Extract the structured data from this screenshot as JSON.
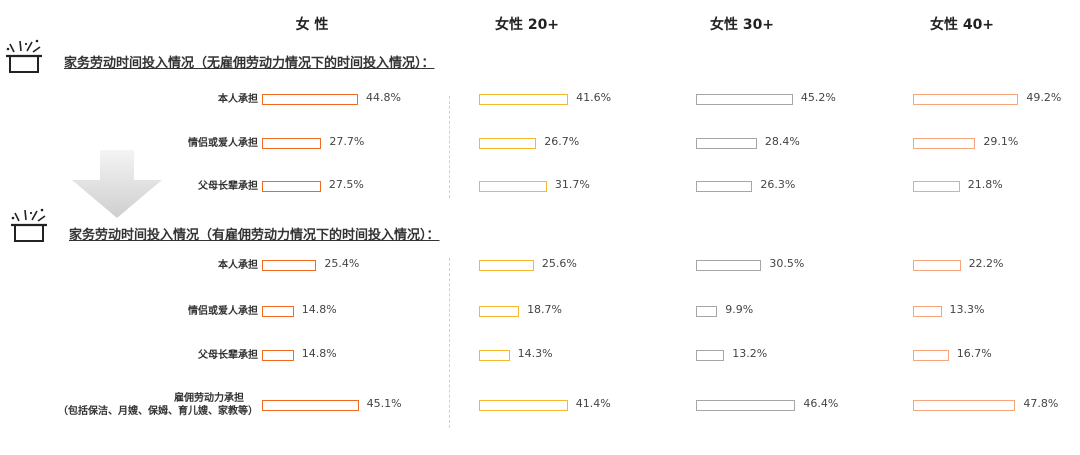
{
  "colors": {
    "女性": "#f26a21",
    "女性20+": "#f5b82e",
    "女性30+": "#a6a6a6",
    "女性40+": "#f7a57a"
  },
  "icons": [
    "pot-sparkle-icon",
    "down-arrow-icon"
  ],
  "chart_data": {
    "type": "bar",
    "columns": [
      "女 性",
      "女性 20+",
      "女性 30+",
      "女性 40+"
    ],
    "sections": [
      {
        "title": "家务劳动时间投入情况（无雇佣劳动力情况下的时间投入情况）：",
        "rows": [
          {
            "label": "本人承担",
            "values": [
              44.8,
              41.6,
              45.2,
              49.2
            ]
          },
          {
            "label": "情侣或爱人承担",
            "values": [
              27.7,
              26.7,
              28.4,
              29.1
            ]
          },
          {
            "label": "父母长辈承担",
            "values": [
              27.5,
              31.7,
              26.3,
              21.8
            ]
          }
        ]
      },
      {
        "title": "家务劳动时间投入情况（有雇佣劳动力情况下的时间投入情况）：",
        "rows": [
          {
            "label": "本人承担",
            "values": [
              25.4,
              25.6,
              30.5,
              22.2
            ]
          },
          {
            "label": "情侣或爱人承担",
            "values": [
              14.8,
              18.7,
              9.9,
              13.3
            ]
          },
          {
            "label": "父母长辈承担",
            "values": [
              14.8,
              14.3,
              13.2,
              16.7
            ]
          },
          {
            "label": "雇佣劳动力承担",
            "sublabel": "（包括保洁、月嫂、保姆、育儿嫂、家教等）",
            "values": [
              45.1,
              41.4,
              46.4,
              47.8
            ]
          }
        ]
      }
    ],
    "value_suffix": "%",
    "xlim": [
      0,
      50
    ]
  }
}
